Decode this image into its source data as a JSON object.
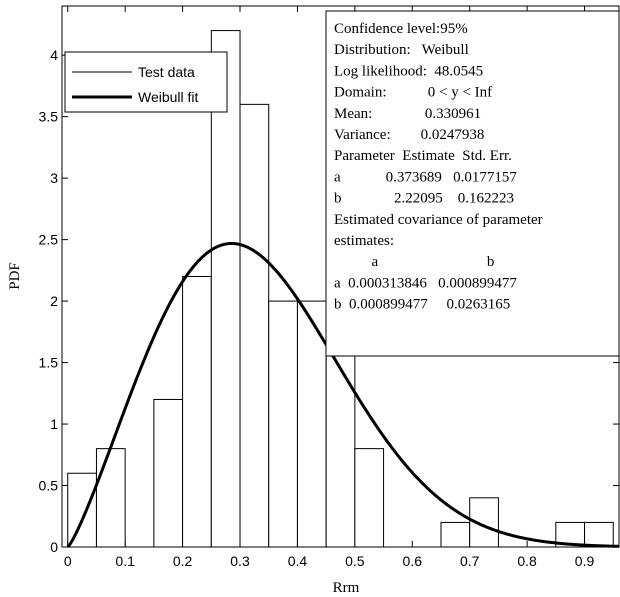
{
  "chart_data": {
    "type": "bar",
    "xlabel": "Rrm",
    "ylabel": "PDF",
    "xlim": [
      -0.01,
      0.96
    ],
    "ylim": [
      0,
      4.4
    ],
    "xticks": [
      "0",
      "0.1",
      "0.2",
      "0.3",
      "0.4",
      "0.5",
      "0.6",
      "0.7",
      "0.8",
      "0.9"
    ],
    "xtick_values": [
      0,
      0.1,
      0.2,
      0.3,
      0.4,
      0.5,
      0.6,
      0.7,
      0.8,
      0.9
    ],
    "yticks": [
      "0",
      "0.5",
      "1",
      "1.5",
      "2",
      "2.5",
      "3",
      "3.5",
      "4"
    ],
    "ytick_values": [
      0,
      0.5,
      1,
      1.5,
      2,
      2.5,
      3,
      3.5,
      4
    ],
    "histogram": {
      "name": "Test data",
      "bin_width": 0.05,
      "bin_starts": [
        0,
        0.05,
        0.15,
        0.2,
        0.25,
        0.3,
        0.35,
        0.4,
        0.45,
        0.5,
        0.65,
        0.7,
        0.85,
        0.9
      ],
      "values": [
        0.6,
        0.8,
        1.2,
        2.2,
        4.2,
        3.6,
        2.0,
        2.0,
        1.6,
        0.8,
        0.2,
        0.4,
        0.2,
        0.2
      ]
    },
    "fit": {
      "name": "Weibull fit",
      "distribution": "Weibull",
      "a": 0.373689,
      "b": 2.22095
    },
    "legend": {
      "position": "top-left",
      "entries": [
        "Test data",
        "Weibull fit"
      ]
    },
    "annotation": {
      "position": "top-right",
      "lines": [
        "Confidence level:95%",
        "Distribution:   Weibull",
        "Log likelihood:  48.0545",
        "Domain:           0 < y < Inf",
        "Mean:              0.330961",
        "Variance:        0.0247938",
        "Parameter  Estimate  Std. Err.",
        "a            0.373689   0.0177157",
        "b              2.22095    0.162223",
        "Estimated covariance of parameter",
        "estimates:",
        "          a                             b",
        "a  0.000313846   0.000899477",
        "b  0.000899477     0.0263165"
      ]
    }
  }
}
